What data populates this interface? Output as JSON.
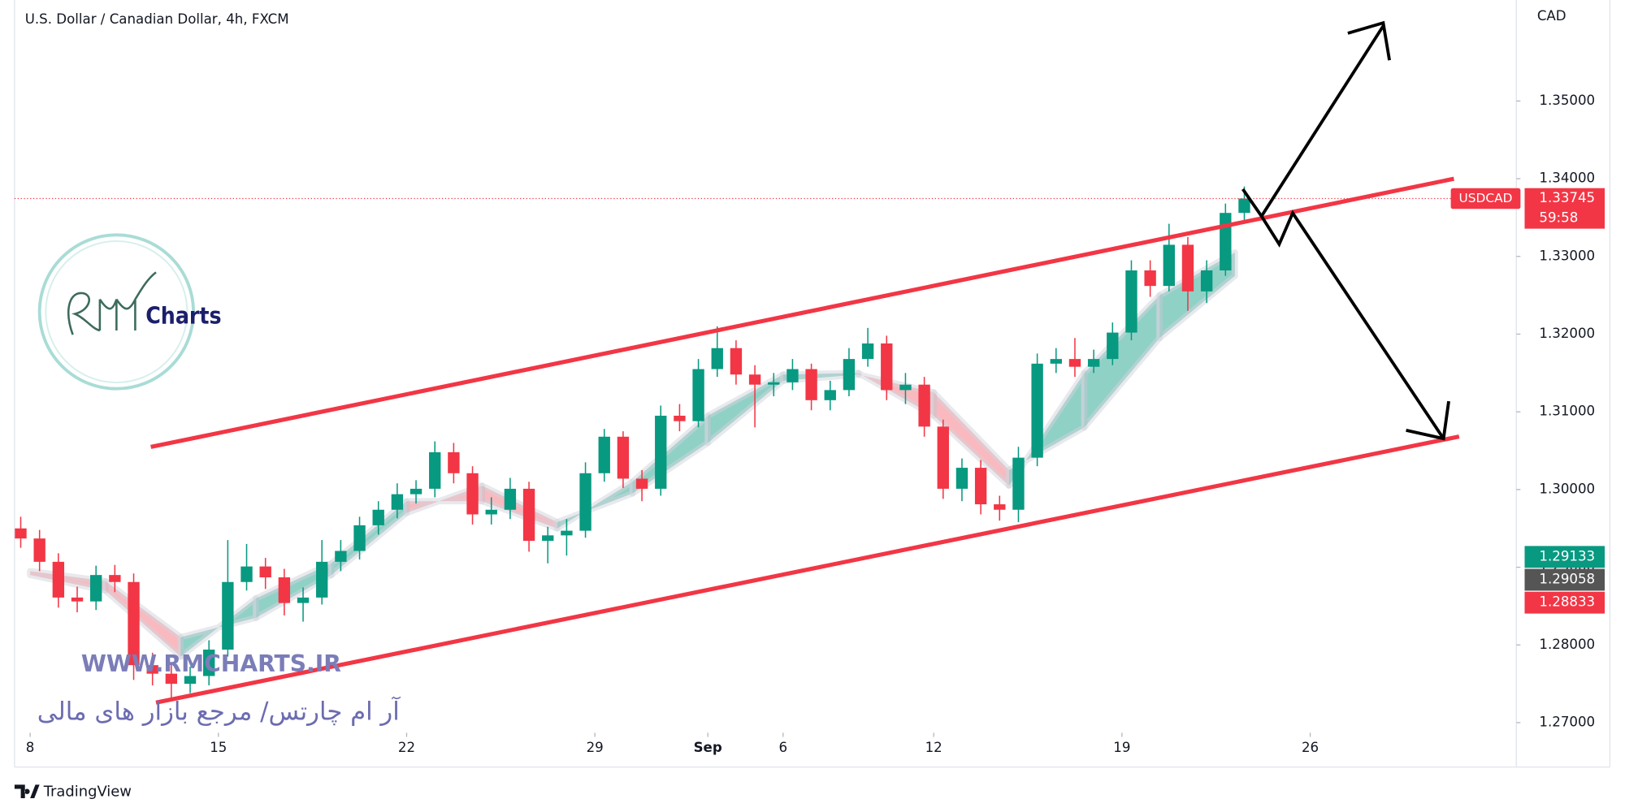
{
  "chart_data": {
    "type": "candlestick",
    "title": "U.S. Dollar / Canadian Dollar, 4h, FXCM",
    "y_axis_label": "CAD",
    "symbol": "USDCAD",
    "countdown": "59:58",
    "last_price": 1.33745,
    "up_color": "#089981",
    "down_color": "#f23645",
    "x": [
      -0.25,
      0.25,
      0.75,
      1.25,
      1.75,
      2.25,
      2.75,
      3.25,
      3.75,
      4.25,
      4.75,
      5.25,
      5.75,
      6.25,
      6.75,
      7.25,
      7.75,
      8.25,
      8.75,
      9.25,
      9.75,
      10.25,
      10.75,
      11.25,
      11.75,
      12.25,
      12.75,
      13.25,
      13.75,
      14.25,
      14.75,
      15.25,
      15.75,
      16.25,
      16.75,
      17.25,
      17.75,
      18.25,
      18.75,
      19.25,
      19.75,
      20.25,
      20.75,
      21.25,
      21.75,
      22.25,
      22.75,
      23.25,
      23.75,
      24.25,
      24.75,
      25.25,
      25.75,
      26.25,
      26.75,
      27.25,
      27.75,
      28.25,
      28.75,
      29.25,
      29.75,
      30.25,
      30.75,
      31.25,
      31.75,
      32.25
    ],
    "open": [
      1.295,
      1.2937,
      1.2907,
      1.2861,
      1.2856,
      1.289,
      1.2881,
      1.2774,
      1.2763,
      1.275,
      1.276,
      1.2794,
      1.2881,
      1.2901,
      1.2887,
      1.2854,
      1.2861,
      1.2907,
      1.2921,
      1.2954,
      1.2974,
      1.2994,
      1.3001,
      1.3048,
      1.3021,
      1.2968,
      1.2974,
      1.3001,
      1.2934,
      1.2941,
      1.2947,
      1.3021,
      1.3068,
      1.3014,
      1.3001,
      1.3095,
      1.3088,
      1.3155,
      1.3182,
      1.3148,
      1.3135,
      1.3138,
      1.3155,
      1.3115,
      1.3128,
      1.3168,
      1.3188,
      1.3128,
      1.3135,
      1.3081,
      1.3001,
      1.3028,
      1.2981,
      1.2974,
      1.3041,
      1.3162,
      1.3168,
      1.3158,
      1.3168,
      1.3202,
      1.3282,
      1.3262,
      1.3315,
      1.3255,
      1.3282,
      1.3356
    ],
    "high": [
      1.2965,
      1.2948,
      1.2918,
      1.2875,
      1.2902,
      1.2903,
      1.2892,
      1.279,
      1.2775,
      1.2772,
      1.2806,
      1.2935,
      1.293,
      1.2912,
      1.2898,
      1.2874,
      1.2935,
      1.2935,
      1.2965,
      1.2985,
      1.3008,
      1.3012,
      1.3062,
      1.306,
      1.303,
      1.299,
      1.3015,
      1.301,
      1.2952,
      1.2962,
      1.3035,
      1.3078,
      1.3075,
      1.3025,
      1.3108,
      1.311,
      1.3168,
      1.321,
      1.3192,
      1.316,
      1.315,
      1.3168,
      1.3162,
      1.314,
      1.3182,
      1.3208,
      1.3198,
      1.315,
      1.3145,
      1.309,
      1.304,
      1.3038,
      1.2992,
      1.3055,
      1.3175,
      1.3182,
      1.3195,
      1.318,
      1.3215,
      1.3295,
      1.3295,
      1.3342,
      1.3325,
      1.3295,
      1.3368,
      1.339
    ],
    "low": [
      1.2925,
      1.2895,
      1.2848,
      1.2842,
      1.2845,
      1.2868,
      1.2755,
      1.2748,
      1.2728,
      1.2738,
      1.2748,
      1.2785,
      1.287,
      1.2872,
      1.2838,
      1.283,
      1.2852,
      1.2895,
      1.291,
      1.2942,
      1.2963,
      1.2982,
      1.299,
      1.3008,
      1.2955,
      1.2955,
      1.2962,
      1.292,
      1.2905,
      1.2915,
      1.2938,
      1.301,
      1.3002,
      1.2985,
      1.2992,
      1.3075,
      1.308,
      1.3145,
      1.3135,
      1.308,
      1.312,
      1.3128,
      1.3102,
      1.3102,
      1.312,
      1.3158,
      1.3115,
      1.311,
      1.3068,
      1.2988,
      1.2985,
      1.2968,
      1.296,
      1.2958,
      1.303,
      1.315,
      1.3145,
      1.315,
      1.316,
      1.3192,
      1.3248,
      1.3255,
      1.323,
      1.324,
      1.3275,
      1.3345
    ],
    "close": [
      1.2937,
      1.2907,
      1.2861,
      1.2856,
      1.289,
      1.2881,
      1.2774,
      1.2763,
      1.275,
      1.276,
      1.2794,
      1.2881,
      1.2901,
      1.2887,
      1.2854,
      1.2861,
      1.2907,
      1.2921,
      1.2954,
      1.2974,
      1.2994,
      1.3001,
      1.3048,
      1.3021,
      1.2968,
      1.2974,
      1.3001,
      1.2934,
      1.2941,
      1.2947,
      1.3021,
      1.3068,
      1.3014,
      1.3001,
      1.3095,
      1.3088,
      1.3155,
      1.3182,
      1.3148,
      1.3135,
      1.3138,
      1.3155,
      1.3115,
      1.3128,
      1.3168,
      1.3188,
      1.3128,
      1.3135,
      1.3081,
      1.3001,
      1.3028,
      1.2981,
      1.2974,
      1.3041,
      1.3162,
      1.3168,
      1.3158,
      1.3168,
      1.3202,
      1.3282,
      1.3262,
      1.3315,
      1.3255,
      1.3282,
      1.3356,
      1.33745
    ],
    "ribbon": {
      "x": [
        0,
        2,
        4,
        6,
        8,
        10,
        12,
        14,
        16,
        18,
        20,
        22,
        24,
        26,
        28,
        30,
        32
      ],
      "fast": [
        1.289,
        1.287,
        1.2785,
        1.286,
        1.2905,
        1.2985,
        1.2985,
        1.295,
        1.301,
        1.3095,
        1.3148,
        1.315,
        1.3095,
        1.3005,
        1.315,
        1.325,
        1.3305
      ],
      "slow": [
        1.2895,
        1.2882,
        1.281,
        1.2835,
        1.289,
        1.297,
        1.3005,
        1.2958,
        1.2995,
        1.306,
        1.314,
        1.3148,
        1.3125,
        1.3025,
        1.308,
        1.3195,
        1.3275
      ]
    },
    "price_badges": [
      {
        "value": 1.29133,
        "color": "#089981"
      },
      {
        "value": 1.29058,
        "color": "#555555"
      },
      {
        "value": 1.28833,
        "color": "#f23645"
      }
    ],
    "xlim": [
      -0.4,
      39.4
    ],
    "ylim": [
      1.2687,
      1.363
    ],
    "xticks": [
      {
        "value": 0,
        "label": "8"
      },
      {
        "value": 5,
        "label": "15"
      },
      {
        "value": 10,
        "label": "22"
      },
      {
        "value": 15,
        "label": "29"
      },
      {
        "value": 18,
        "label": "Sep"
      },
      {
        "value": 20,
        "label": "6"
      },
      {
        "value": 24,
        "label": "12"
      },
      {
        "value": 29,
        "label": "19"
      },
      {
        "value": 34,
        "label": "26"
      }
    ],
    "yticks": [
      {
        "value": 1.27,
        "label": "1.27000"
      },
      {
        "value": 1.28,
        "label": "1.28000"
      },
      {
        "value": 1.29,
        "label": "1.29000"
      },
      {
        "value": 1.3,
        "label": "1.30000"
      },
      {
        "value": 1.31,
        "label": "1.31000"
      },
      {
        "value": 1.32,
        "label": "1.32000"
      },
      {
        "value": 1.33,
        "label": "1.33000"
      },
      {
        "value": 1.34,
        "label": "1.34000"
      },
      {
        "value": 1.35,
        "label": "1.35000"
      }
    ]
  },
  "watermark": "WWW.RMCHARTS.IR",
  "tagline": "آر ام چارتس/ مرجع بازار های مالی",
  "logo_text": "Charts",
  "footer": "TradingView"
}
